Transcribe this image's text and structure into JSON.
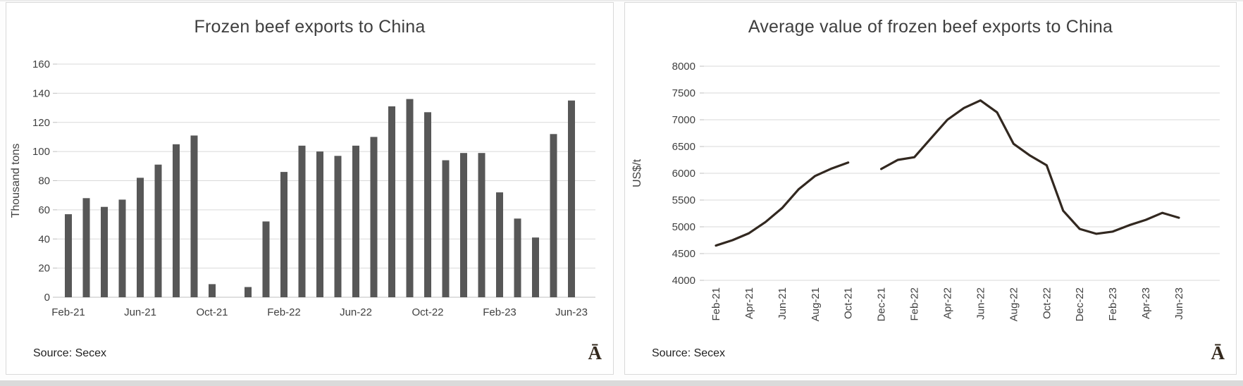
{
  "watermark": {
    "glyph": "Ā"
  },
  "chart_data": [
    {
      "type": "bar",
      "title": "Frozen beef exports to China",
      "source": "Source: Secex",
      "ylabel": "Thousand tons",
      "ylim": [
        0,
        160
      ],
      "ytick_step": 20,
      "grid": true,
      "legend": "none",
      "bar_color": "#575757",
      "categories": [
        "Feb-21",
        "Mar-21",
        "Apr-21",
        "May-21",
        "Jun-21",
        "Jul-21",
        "Aug-21",
        "Sep-21",
        "Oct-21",
        "Nov-21",
        "Dec-21",
        "Jan-22",
        "Feb-22",
        "Mar-22",
        "Apr-22",
        "May-22",
        "Jun-22",
        "Jul-22",
        "Aug-22",
        "Sep-22",
        "Oct-22",
        "Nov-22",
        "Dec-22",
        "Jan-23",
        "Feb-23",
        "Mar-23",
        "Apr-23",
        "May-23",
        "Jun-23"
      ],
      "values": [
        57,
        68,
        62,
        67,
        82,
        91,
        105,
        111,
        9,
        0,
        7,
        52,
        86,
        104,
        100,
        97,
        104,
        110,
        131,
        136,
        127,
        94,
        99,
        99,
        72,
        54,
        41,
        112,
        135
      ],
      "xtick_labels_shown": [
        "Feb-21",
        "Jun-21",
        "Oct-21",
        "Feb-22",
        "Jun-22",
        "Oct-22",
        "Feb-23",
        "Jun-23"
      ],
      "xtick_rotation": 0
    },
    {
      "type": "line",
      "title": "Average value of frozen beef exports to China",
      "source": "Source: Secex",
      "ylabel": "US$/t",
      "ylim": [
        4000,
        8000
      ],
      "ytick_step": 500,
      "grid": true,
      "legend": "none",
      "line_color": "#322820",
      "categories": [
        "Feb-21",
        "Mar-21",
        "Apr-21",
        "May-21",
        "Jun-21",
        "Jul-21",
        "Aug-21",
        "Sep-21",
        "Oct-21",
        "Nov-21",
        "Dec-21",
        "Jan-22",
        "Feb-22",
        "Mar-22",
        "Apr-22",
        "May-22",
        "Jun-22",
        "Jul-22",
        "Aug-22",
        "Sep-22",
        "Oct-22",
        "Nov-22",
        "Dec-22",
        "Jan-23",
        "Feb-23",
        "Mar-23",
        "Apr-23",
        "May-23",
        "Jun-23"
      ],
      "values": [
        4650,
        4750,
        4880,
        5090,
        5350,
        5700,
        5950,
        6090,
        6200,
        null,
        6080,
        6250,
        6300,
        6650,
        7000,
        7220,
        7360,
        7140,
        6550,
        6330,
        6150,
        5300,
        4960,
        4870,
        4910,
        5030,
        5130,
        5260,
        5170
      ],
      "xtick_labels_shown": [
        "Feb-21",
        "Apr-21",
        "Jun-21",
        "Aug-21",
        "Oct-21",
        "Dec-21",
        "Feb-22",
        "Apr-22",
        "Jun-22",
        "Aug-22",
        "Oct-22",
        "Dec-22",
        "Feb-23",
        "Apr-23",
        "Jun-23"
      ],
      "xtick_rotation": -90
    }
  ]
}
